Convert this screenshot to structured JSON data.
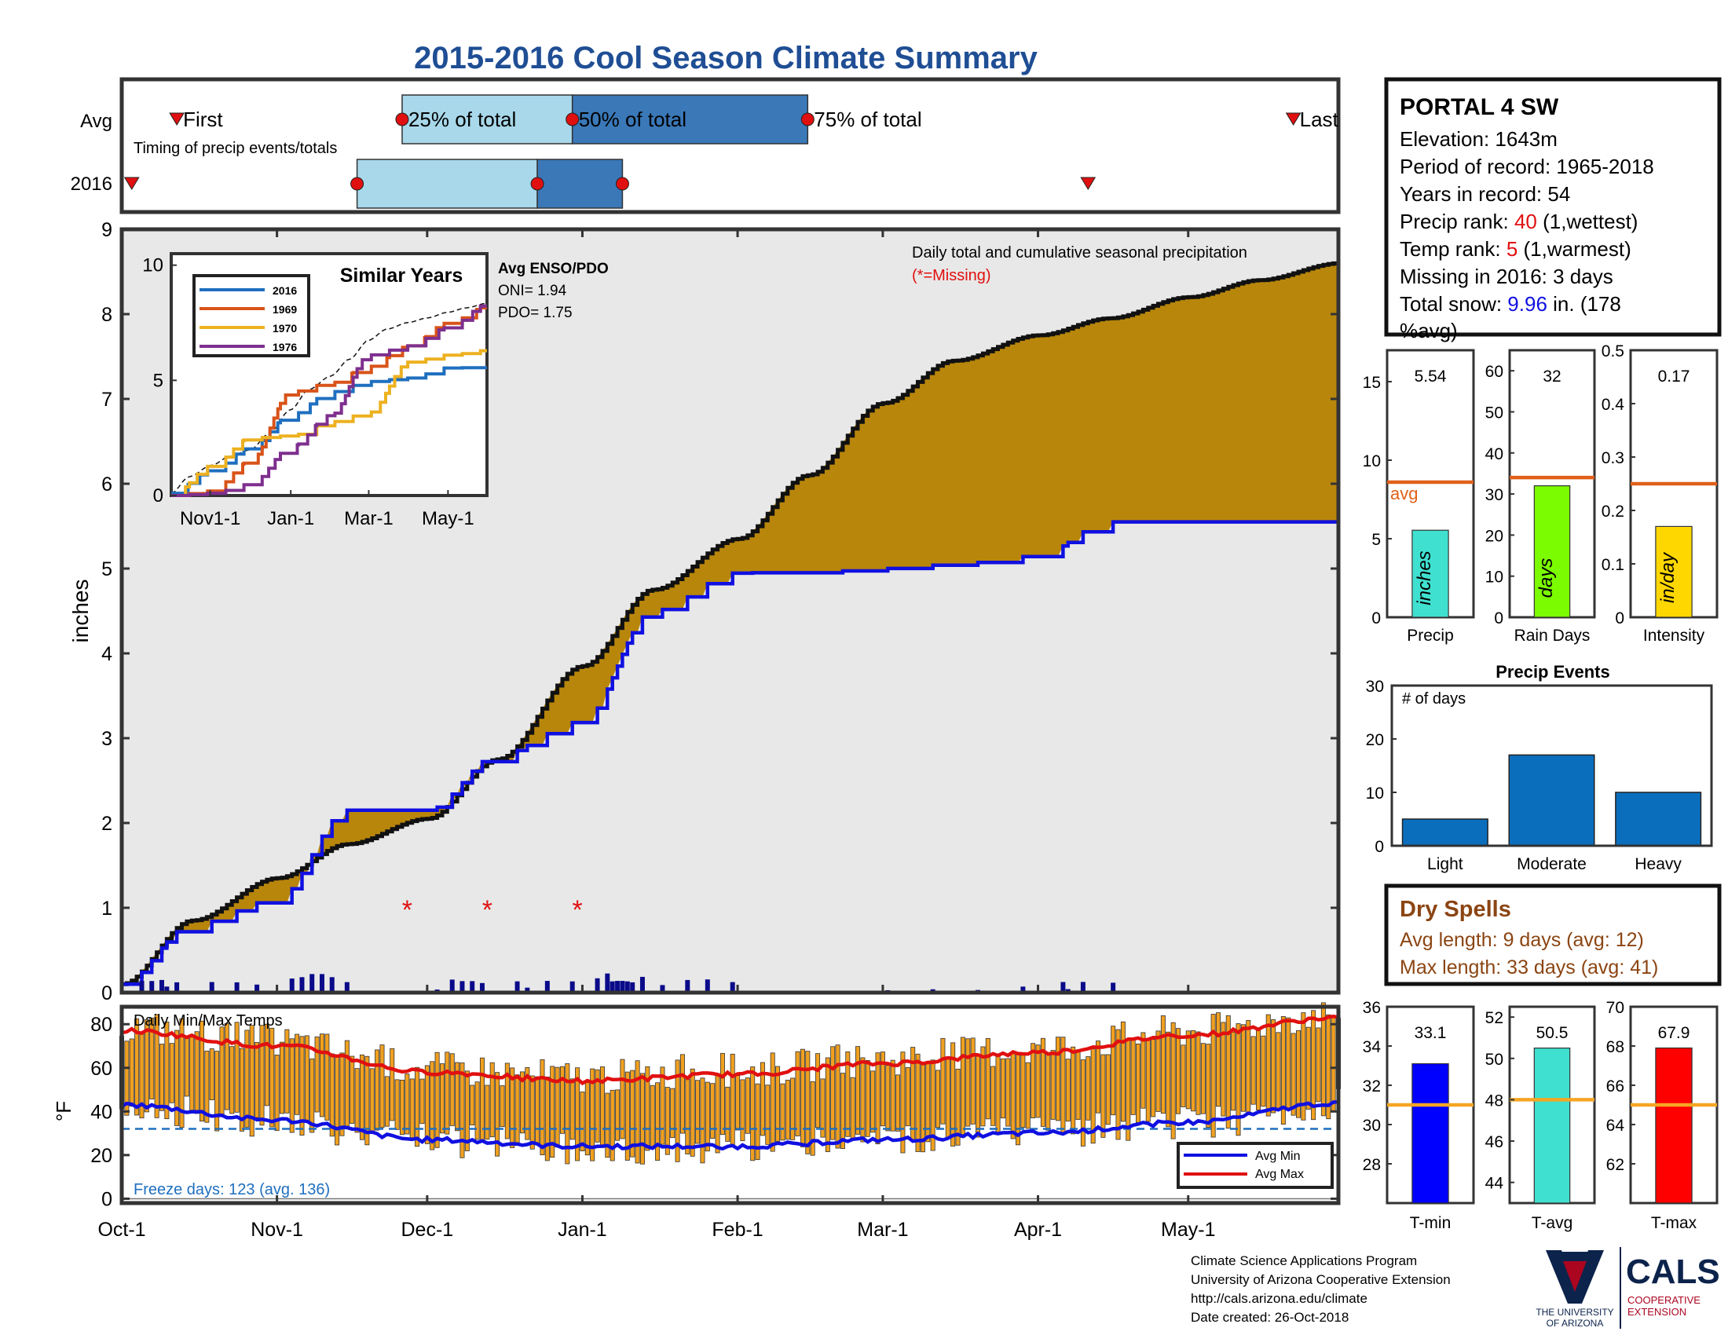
{
  "title": "2015-2016 Cool Season Climate Summary",
  "station": {
    "name": "PORTAL 4 SW",
    "elevation": "Elevation: 1643m",
    "period": "Period of record: 1965-2018",
    "years": "Years in record: 54",
    "precip_rank_label": "Precip rank: ",
    "precip_rank_value": "40",
    "precip_rank_note": " (1,wettest)",
    "temp_rank_label": "Temp rank: ",
    "temp_rank_value": "5",
    "temp_rank_note": " (1,warmest)",
    "missing": "Missing in 2016: 3 days",
    "snow_label": "Total snow: ",
    "snow_value": "9.96",
    "snow_note": " in. (178",
    "snow_note2": "%avg)"
  },
  "timing": {
    "row_avg": "Avg",
    "row_year": "2016",
    "caption": "Timing of precip events/totals",
    "first": "First",
    "last": "Last",
    "p25": "25% of total",
    "p50": "50% of total",
    "p75": "75% of total",
    "avg_dates": {
      "first": "Oct-12",
      "p25": "Nov-26",
      "p50": "Dec-30",
      "p75": "Feb-15",
      "last": "May-22"
    },
    "year_dates": {
      "first": "Oct-3",
      "p25": "Nov-17",
      "p50": "Dec-23",
      "p75": "Jan-9",
      "last": "Apr-11"
    }
  },
  "main_chart": {
    "caption": "Daily total and cumulative seasonal precipitation",
    "missing_note": "(*=Missing)",
    "ylabel": "inches",
    "missing_marker": "*",
    "x_ticks": [
      "Oct-1",
      "Nov-1",
      "Dec-1",
      "Jan-1",
      "Feb-1",
      "Mar-1",
      "Apr-1",
      "May-1"
    ],
    "y_ticks": [
      "0",
      "1",
      "2",
      "3",
      "4",
      "5",
      "6",
      "7",
      "8",
      "9"
    ]
  },
  "inset": {
    "title": "Similar Years",
    "enso_title": "Avg ENSO/PDO",
    "oni": "ONI= 1.94",
    "pdo": "PDO= 1.75",
    "x_ticks": [
      "Nov1-1",
      "Jan-1",
      "Mar-1",
      "May-1"
    ],
    "y_ticks": [
      "0",
      "5",
      "10"
    ],
    "legend": [
      "2016",
      "1969",
      "1970",
      "1976"
    ]
  },
  "bars_precip": {
    "precip": {
      "value": "5.54",
      "unit": "inches",
      "label": "Precip",
      "ticks": [
        "0",
        "5",
        "10",
        "15"
      ]
    },
    "days": {
      "value": "32",
      "unit": "days",
      "label": "Rain Days",
      "ticks": [
        "0",
        "10",
        "20",
        "30",
        "40",
        "50",
        "60"
      ]
    },
    "intensity": {
      "value": "0.17",
      "unit": "in/day",
      "label": "Intensity",
      "ticks": [
        "0",
        "0.1",
        "0.2",
        "0.3",
        "0.4",
        "0.5"
      ]
    },
    "avg_label": "avg"
  },
  "events": {
    "title": "Precip Events",
    "ylabel": "# of days",
    "categories": [
      "Light",
      "Moderate",
      "Heavy"
    ],
    "ticks": [
      "0",
      "10",
      "20",
      "30"
    ]
  },
  "dry_spells": {
    "title": "Dry Spells",
    "avg": "Avg length: 9 days (avg: 12)",
    "max": "Max length: 33 days (avg: 41)"
  },
  "temps": {
    "caption": "Daily Min/Max Temps",
    "ylabel": "°F",
    "y_ticks": [
      "0",
      "20",
      "40",
      "60",
      "80"
    ],
    "freeze": "Freeze days: 123 (avg. 136)",
    "legend_min": "Avg Min",
    "legend_max": "Avg Max"
  },
  "temp_bars": {
    "tmin": {
      "value": "33.1",
      "label": "T-min",
      "ticks": [
        "28",
        "30",
        "32",
        "34",
        "36"
      ]
    },
    "tavg": {
      "value": "50.5",
      "label": "T-avg",
      "ticks": [
        "44",
        "46",
        "48",
        "50",
        "52"
      ]
    },
    "tmax": {
      "value": "67.9",
      "label": "T-max",
      "ticks": [
        "62",
        "64",
        "66",
        "68",
        "70"
      ]
    }
  },
  "footer": {
    "line1": "Climate Science Applications Program",
    "line2": "University of Arizona Cooperative Extension",
    "line3": "http://cals.arizona.edu/climate",
    "line4": " Date created: 26-Oct-2018",
    "ua1": "THE UNIVERSITY",
    "ua2": "OF ARIZONA",
    "cals": "CALS",
    "cals2": "COOPERATIVE",
    "cals3": "EXTENSION"
  },
  "colors": {
    "title": "#1f4e94",
    "brown": "#b8860b",
    "blue_line": "#1010e0",
    "red": "#e01010",
    "light_box": "#a8d8ea",
    "dark_box": "#3a78b8",
    "event_bar": "#0a6ebd",
    "temp_bar": "#f0a020",
    "avg_line": "#e0601a",
    "dry": "#8b4513"
  },
  "chart_data": [
    {
      "type": "area",
      "title": "Daily total and cumulative seasonal precipitation",
      "ylabel": "inches",
      "ylim": [
        0,
        9
      ],
      "x": [
        "Oct-1",
        "Oct-15",
        "Nov-1",
        "Nov-15",
        "Dec-1",
        "Dec-15",
        "Jan-1",
        "Jan-15",
        "Feb-1",
        "Feb-15",
        "Mar-1",
        "Mar-15",
        "Apr-1",
        "Apr-15",
        "May-1",
        "May-15",
        "May-31"
      ],
      "series": [
        {
          "name": "Avg cumulative",
          "values": [
            0.1,
            0.85,
            1.35,
            1.75,
            2.05,
            2.75,
            3.85,
            4.75,
            5.35,
            6.1,
            6.95,
            7.45,
            7.75,
            7.95,
            8.2,
            8.4,
            8.6
          ]
        },
        {
          "name": "2016 cumulative",
          "values": [
            0.1,
            0.8,
            1.1,
            2.15,
            2.15,
            2.8,
            3.2,
            4.5,
            4.95,
            4.95,
            5.0,
            5.05,
            5.15,
            5.55,
            5.55,
            5.55,
            5.55
          ]
        }
      ],
      "missing_days": [
        "Nov-27",
        "Dec-13",
        "Dec-31"
      ]
    },
    {
      "type": "line",
      "title": "Similar Years",
      "ylim": [
        0,
        10
      ],
      "x": [
        "Oct-1",
        "Nov-1",
        "Dec-1",
        "Jan-1",
        "Feb-1",
        "Mar-1",
        "Apr-1",
        "May-1",
        "May-31"
      ],
      "series": [
        {
          "name": "2016",
          "values": [
            0.1,
            1.1,
            2.1,
            3.5,
            4.5,
            4.95,
            5.1,
            5.55,
            5.55
          ]
        },
        {
          "name": "1969",
          "values": [
            0,
            0.2,
            1.5,
            4.5,
            4.9,
            5.6,
            6.5,
            7.5,
            8.2
          ]
        },
        {
          "name": "1970",
          "values": [
            0,
            1.3,
            2.5,
            2.6,
            3.2,
            3.6,
            5.8,
            6.1,
            6.3
          ]
        },
        {
          "name": "1976",
          "values": [
            0,
            0.1,
            0.5,
            2.1,
            3.5,
            6.1,
            6.5,
            7.3,
            8.3
          ]
        }
      ]
    },
    {
      "type": "bar",
      "title": "Precip",
      "ylabel": "inches",
      "categories": [
        "2016"
      ],
      "values": [
        5.54
      ],
      "average": 8.6,
      "ylim": [
        0,
        17
      ]
    },
    {
      "type": "bar",
      "title": "Rain Days",
      "ylabel": "days",
      "categories": [
        "2016"
      ],
      "values": [
        32
      ],
      "average": 34,
      "ylim": [
        0,
        65
      ]
    },
    {
      "type": "bar",
      "title": "Intensity",
      "ylabel": "in/day",
      "categories": [
        "2016"
      ],
      "values": [
        0.17
      ],
      "average": 0.25,
      "ylim": [
        0,
        0.5
      ]
    },
    {
      "type": "bar",
      "title": "Precip Events",
      "ylabel": "# of days",
      "categories": [
        "Light",
        "Moderate",
        "Heavy"
      ],
      "values": [
        5,
        17,
        10
      ],
      "ylim": [
        0,
        30
      ]
    },
    {
      "type": "bar",
      "title": "Daily Min/Max Temps",
      "ylabel": "°F",
      "ylim": [
        -2,
        88
      ],
      "x": [
        "Oct-1",
        "Nov-1",
        "Dec-1",
        "Jan-1",
        "Feb-1",
        "Mar-1",
        "Apr-1",
        "May-1",
        "May-31"
      ],
      "series": [
        {
          "name": "Avg Min",
          "values": [
            43,
            36,
            27,
            24,
            24,
            27,
            30,
            35,
            44
          ]
        },
        {
          "name": "Avg Max",
          "values": [
            77,
            70,
            58,
            54,
            57,
            62,
            67,
            75,
            83
          ]
        }
      ],
      "freeze_line": 32
    },
    {
      "type": "bar",
      "title": "T-min",
      "categories": [
        "2016"
      ],
      "values": [
        33.1
      ],
      "average": 31,
      "ylim": [
        26,
        36
      ]
    },
    {
      "type": "bar",
      "title": "T-avg",
      "categories": [
        "2016"
      ],
      "values": [
        50.5
      ],
      "average": 48,
      "ylim": [
        43,
        52.5
      ]
    },
    {
      "type": "bar",
      "title": "T-max",
      "categories": [
        "2016"
      ],
      "values": [
        67.9
      ],
      "average": 65,
      "ylim": [
        60,
        70
      ]
    }
  ]
}
